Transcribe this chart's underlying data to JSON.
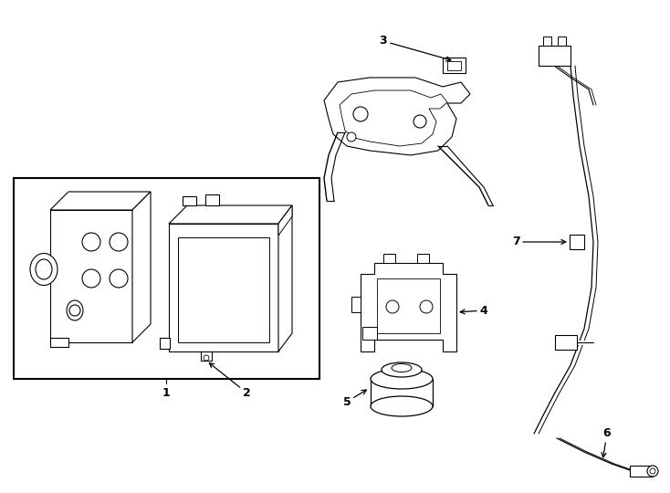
{
  "background_color": "#ffffff",
  "line_color": "#000000",
  "fig_width": 7.34,
  "fig_height": 5.4,
  "dpi": 100,
  "lw": 0.8
}
